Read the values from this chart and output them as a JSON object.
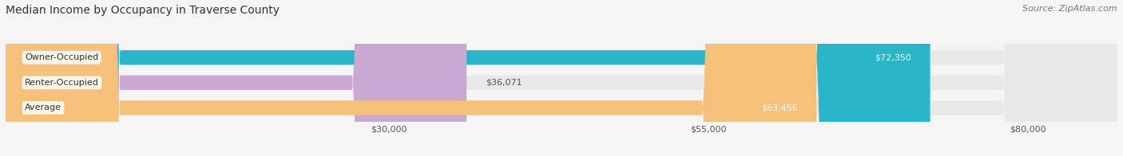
{
  "title": "Median Income by Occupancy in Traverse County",
  "source": "Source: ZipAtlas.com",
  "categories": [
    "Owner-Occupied",
    "Renter-Occupied",
    "Average"
  ],
  "values": [
    72350,
    36071,
    63456
  ],
  "bar_colors": [
    "#2bb5c8",
    "#c9a8d4",
    "#f5c07a"
  ],
  "bar_labels": [
    "$72,350",
    "$36,071",
    "$63,456"
  ],
  "x_ticks": [
    30000,
    55000,
    80000
  ],
  "x_tick_labels": [
    "$30,000",
    "$55,000",
    "$80,000"
  ],
  "xmin": 0,
  "xmax": 87000,
  "background_color": "#f5f5f5",
  "bar_bg_color": "#e8e8e8",
  "title_fontsize": 10,
  "source_fontsize": 8,
  "label_fontsize": 8,
  "tick_fontsize": 8,
  "category_fontsize": 8,
  "bar_height": 0.58
}
